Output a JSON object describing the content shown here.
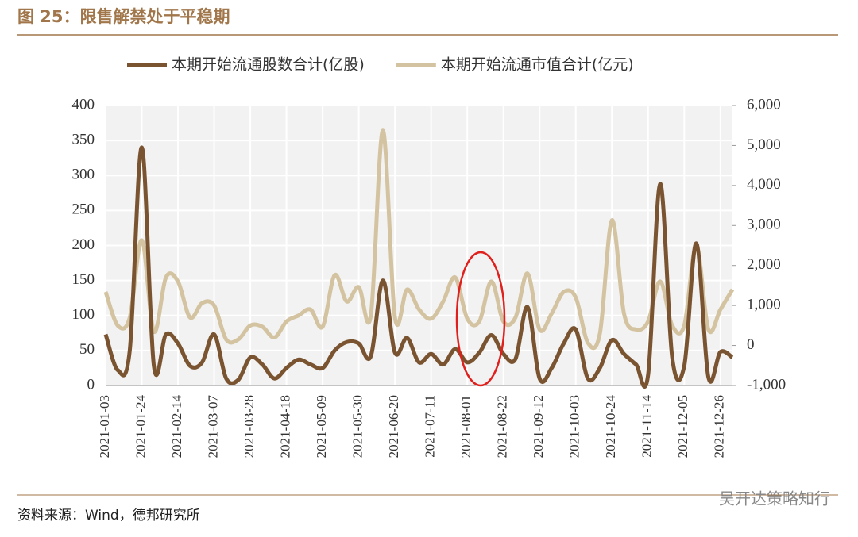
{
  "header": {
    "title": "图 25：限售解禁处于平稳期"
  },
  "chart_data": {
    "type": "line",
    "categories": [
      "2021-01-03",
      null,
      null,
      "2021-01-24",
      null,
      null,
      "2021-02-14",
      null,
      null,
      "2021-03-07",
      null,
      null,
      "2021-03-28",
      null,
      null,
      "2021-04-18",
      null,
      null,
      "2021-05-09",
      null,
      null,
      "2021-05-30",
      null,
      null,
      "2021-06-20",
      null,
      null,
      "2021-07-11",
      null,
      null,
      "2021-08-01",
      null,
      null,
      "2021-08-22",
      null,
      null,
      "2021-09-12",
      null,
      null,
      "2021-10-03",
      null,
      null,
      "2021-10-24",
      null,
      null,
      "2021-11-14",
      null,
      null,
      "2021-12-05",
      null,
      null,
      "2021-12-26",
      null
    ],
    "series": [
      {
        "name": "本期开始流通股数合计(亿股)",
        "color": "#7a5431",
        "values": [
          73,
          22,
          50,
          340,
          28,
          73,
          60,
          28,
          33,
          73,
          10,
          8,
          40,
          30,
          10,
          25,
          37,
          30,
          25,
          50,
          62,
          60,
          42,
          150,
          47,
          68,
          33,
          45,
          30,
          52,
          33,
          47,
          72,
          45,
          38,
          112,
          10,
          25,
          60,
          80,
          10,
          25,
          65,
          45,
          30,
          15,
          288,
          40,
          28,
          203,
          12,
          48,
          40
        ]
      },
      {
        "name": "本期开始流通市值合计(亿元)",
        "color": "#d4c3a0",
        "axis": "y2",
        "values": [
          1340,
          500,
          700,
          2630,
          350,
          1700,
          1600,
          700,
          1060,
          1000,
          150,
          150,
          500,
          470,
          200,
          600,
          750,
          900,
          470,
          1760,
          1100,
          1460,
          750,
          5370,
          700,
          1400,
          900,
          670,
          1100,
          1700,
          670,
          600,
          1600,
          600,
          700,
          1800,
          400,
          800,
          1340,
          1200,
          70,
          300,
          3130,
          800,
          400,
          600,
          1600,
          500,
          500,
          2500,
          400,
          900,
          1400
        ]
      }
    ],
    "ylim": [
      0,
      400
    ],
    "yticks": [
      0,
      50,
      100,
      150,
      200,
      250,
      300,
      350,
      400
    ],
    "y2lim": [
      -1000,
      6000
    ],
    "y2ticks": [
      {
        "value": -1000,
        "label": "-1,000"
      },
      0,
      {
        "value": 1000,
        "label": "1,000"
      },
      {
        "value": 2000,
        "label": "2,000"
      },
      {
        "value": 3000,
        "label": "3,000"
      },
      {
        "value": 4000,
        "label": "4,000"
      },
      {
        "value": 5000,
        "label": "5,000"
      },
      {
        "value": 6000,
        "label": "6,000"
      }
    ],
    "grid": true,
    "legend": "top"
  },
  "footer": {
    "source": "资料来源：Wind，德邦研究所",
    "watermark": "吴开达策略知行"
  }
}
